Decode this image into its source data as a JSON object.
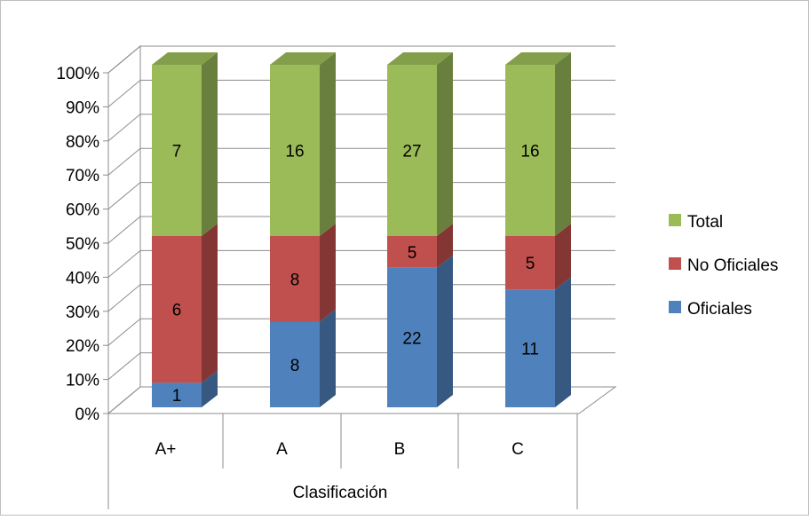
{
  "chart_data": {
    "type": "bar",
    "stacked": "percent",
    "view": "3d",
    "categories": [
      "A+",
      "A",
      "B",
      "C"
    ],
    "series": [
      {
        "name": "Oficiales",
        "values": [
          1,
          8,
          22,
          11
        ],
        "color": "#4f81bd"
      },
      {
        "name": "No Oficiales",
        "values": [
          6,
          8,
          5,
          5
        ],
        "color": "#c0504d"
      },
      {
        "name": "Total",
        "values": [
          7,
          16,
          27,
          16
        ],
        "color": "#9bbb59"
      }
    ],
    "title": "",
    "xlabel": "Clasificación",
    "ylabel": "",
    "ylim": [
      0,
      100
    ],
    "yticks": [
      "0%",
      "10%",
      "20%",
      "30%",
      "40%",
      "50%",
      "60%",
      "70%",
      "80%",
      "90%",
      "100%"
    ],
    "grid": true,
    "legend": "right"
  }
}
